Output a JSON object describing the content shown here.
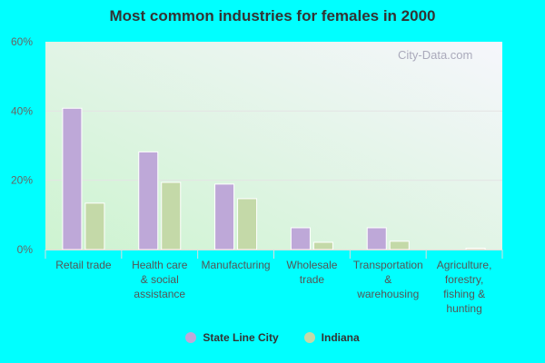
{
  "chart_data": {
    "type": "bar",
    "title": "Most common industries for females in 2000",
    "categories": [
      [
        "Retail trade"
      ],
      [
        "Health care",
        "& social",
        "assistance"
      ],
      [
        "Manufacturing"
      ],
      [
        "Wholesale",
        "trade"
      ],
      [
        "Transportation",
        "&",
        "warehousing"
      ],
      [
        "Agriculture,",
        "forestry,",
        "fishing &",
        "hunting"
      ]
    ],
    "series": [
      {
        "name": "State Line City",
        "color": "#bea8d8",
        "values": [
          40.8,
          28.2,
          18.9,
          6.3,
          6.3,
          0
        ]
      },
      {
        "name": "Indiana",
        "color": "#c4d9a8",
        "values": [
          13.4,
          19.4,
          14.7,
          2.1,
          2.4,
          0.4
        ]
      }
    ],
    "yticks": [
      "0%",
      "20%",
      "40%",
      "60%"
    ],
    "ylim": [
      0,
      60
    ],
    "grid": true,
    "legend": "bottom"
  },
  "watermark": "City-Data.com"
}
